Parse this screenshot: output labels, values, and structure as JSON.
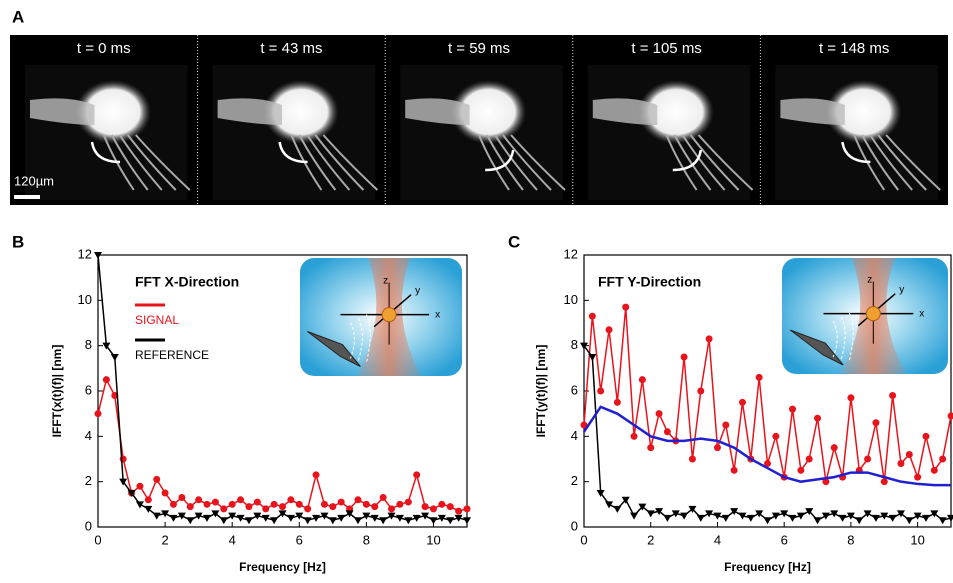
{
  "panel_a": {
    "letter": "A",
    "frames": [
      "t = 0 ms",
      "t = 43 ms",
      "t = 59 ms",
      "t = 105 ms",
      "t = 148 ms"
    ],
    "scale_bar": "120µm"
  },
  "chart_data": [
    {
      "type": "line",
      "letter": "B",
      "title": "FFT X-Direction",
      "x_label": "Frequency [Hz]",
      "y_label": "IFFT(x(t)(f)| [nm]",
      "xlim": [
        0,
        11
      ],
      "ylim": [
        0,
        12
      ],
      "xticks": [
        0,
        2,
        4,
        6,
        8,
        10
      ],
      "yticks": [
        0,
        2,
        4,
        6,
        8,
        10,
        12
      ],
      "inset_labels": [
        "z",
        "y",
        "x"
      ],
      "legend": "upper-left",
      "x": [
        0,
        0.25,
        0.5,
        0.75,
        1,
        1.25,
        1.5,
        1.75,
        2,
        2.25,
        2.5,
        2.75,
        3,
        3.25,
        3.5,
        3.75,
        4,
        4.25,
        4.5,
        4.75,
        5,
        5.25,
        5.5,
        5.75,
        6,
        6.25,
        6.5,
        6.75,
        7,
        7.25,
        7.5,
        7.75,
        8,
        8.25,
        8.5,
        8.75,
        9,
        9.25,
        9.5,
        9.75,
        10,
        10.25,
        10.5,
        10.75,
        11
      ],
      "series": [
        {
          "name": "SIGNAL",
          "color": "#e8141c",
          "marker": "circle",
          "values": [
            5,
            6.5,
            5.8,
            3,
            1.5,
            1.8,
            1.2,
            2.1,
            1.5,
            1.0,
            1.3,
            0.9,
            1.2,
            1.0,
            1.1,
            0.8,
            1.0,
            1.2,
            0.9,
            1.1,
            0.8,
            1.0,
            0.9,
            1.2,
            1.0,
            0.8,
            2.3,
            1.0,
            0.9,
            1.1,
            0.8,
            1.2,
            1.0,
            0.9,
            1.3,
            0.8,
            1.0,
            1.1,
            2.3,
            0.9,
            0.8,
            1.0,
            0.9,
            0.7,
            0.8
          ]
        },
        {
          "name": "REFERENCE",
          "color": "#000000",
          "marker": "triangle",
          "values": [
            12,
            8,
            7.5,
            2,
            1.5,
            1.0,
            0.8,
            0.5,
            0.6,
            0.4,
            0.5,
            0.3,
            0.5,
            0.4,
            0.6,
            0.3,
            0.5,
            0.4,
            0.3,
            0.5,
            0.4,
            0.3,
            0.6,
            0.4,
            0.5,
            0.3,
            0.4,
            0.5,
            0.3,
            0.4,
            0.6,
            0.3,
            0.5,
            0.4,
            0.3,
            0.5,
            0.4,
            0.3,
            0.4,
            0.5,
            0.3,
            0.4,
            0.3,
            0.4,
            0.3
          ]
        }
      ]
    },
    {
      "type": "line",
      "letter": "C",
      "title": "FFT Y-Direction",
      "x_label": "Frequency [Hz]",
      "y_label": "IFFT(y(t)(f)| [nm]",
      "xlim": [
        0,
        11
      ],
      "ylim": [
        0,
        12
      ],
      "xticks": [
        0,
        2,
        4,
        6,
        8,
        10
      ],
      "yticks": [
        0,
        2,
        4,
        6,
        8,
        10,
        12
      ],
      "inset_labels": [
        "z",
        "y",
        "x"
      ],
      "x": [
        0,
        0.25,
        0.5,
        0.75,
        1,
        1.25,
        1.5,
        1.75,
        2,
        2.25,
        2.5,
        2.75,
        3,
        3.25,
        3.5,
        3.75,
        4,
        4.25,
        4.5,
        4.75,
        5,
        5.25,
        5.5,
        5.75,
        6,
        6.25,
        6.5,
        6.75,
        7,
        7.25,
        7.5,
        7.75,
        8,
        8.25,
        8.5,
        8.75,
        9,
        9.25,
        9.5,
        9.75,
        10,
        10.25,
        10.5,
        10.75,
        11
      ],
      "series": [
        {
          "color": "#e8141c",
          "marker": "circle",
          "values": [
            4.5,
            9.3,
            6.0,
            8.7,
            5.5,
            9.7,
            4.0,
            6.5,
            3.5,
            5.0,
            4.2,
            3.8,
            7.5,
            3.0,
            6.0,
            8.3,
            3.5,
            4.5,
            2.5,
            5.5,
            3.0,
            6.6,
            2.8,
            4.0,
            2.2,
            5.2,
            2.5,
            3.0,
            4.8,
            2.0,
            3.5,
            2.2,
            5.7,
            2.5,
            3.0,
            4.6,
            2.0,
            5.8,
            2.8,
            3.2,
            2.2,
            4.0,
            2.5,
            3.0,
            4.9
          ]
        },
        {
          "color": "#000000",
          "marker": "triangle",
          "values": [
            8,
            7.5,
            1.5,
            1.0,
            0.8,
            1.2,
            0.5,
            0.9,
            0.6,
            0.7,
            0.4,
            0.6,
            0.5,
            0.8,
            0.4,
            0.6,
            0.5,
            0.4,
            0.7,
            0.5,
            0.4,
            0.6,
            0.3,
            0.5,
            0.6,
            0.4,
            0.5,
            0.7,
            0.3,
            0.5,
            0.6,
            0.4,
            0.5,
            0.3,
            0.6,
            0.4,
            0.5,
            0.4,
            0.6,
            0.3,
            0.5,
            0.4,
            0.6,
            0.3,
            0.4
          ]
        },
        {
          "color": "#2020d0",
          "marker": "none",
          "x": [
            0,
            0.5,
            1,
            1.5,
            2,
            2.5,
            3,
            3.5,
            4,
            4.5,
            5,
            5.5,
            6,
            6.5,
            7,
            7.5,
            8,
            8.5,
            9,
            9.5,
            10,
            10.5,
            11
          ],
          "values": [
            4.2,
            5.3,
            5.0,
            4.5,
            4.0,
            3.8,
            3.8,
            3.9,
            3.8,
            3.5,
            3.0,
            2.6,
            2.2,
            2.0,
            2.1,
            2.2,
            2.4,
            2.4,
            2.2,
            2.0,
            1.9,
            1.85,
            1.85
          ]
        }
      ]
    }
  ]
}
